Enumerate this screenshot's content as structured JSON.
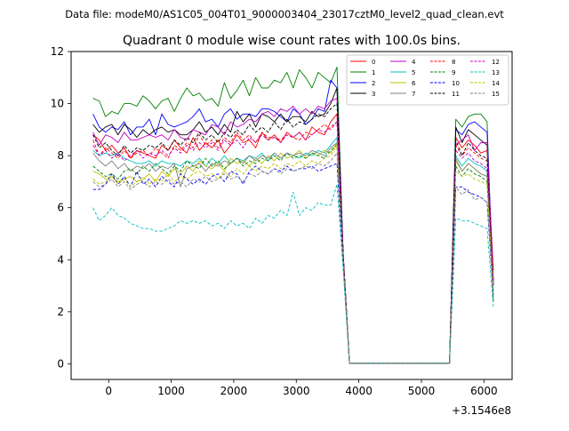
{
  "figure": {
    "suptitle": "Data file: modeM0/AS1C05_004T01_9000003404_23017cztM0_level2_quad_clean.evt"
  },
  "chart_data": {
    "type": "line",
    "title": "Quadrant 0 module wise count rates with 100.0s bins.",
    "xlabel": "",
    "ylabel": "",
    "x_offset_label": "+3.1546e8",
    "xlim": [
      -600,
      6450
    ],
    "ylim": [
      -0.6,
      12
    ],
    "xticks": [
      0,
      1000,
      2000,
      3000,
      4000,
      5000,
      6000
    ],
    "xtick_labels": [
      "0",
      "1000",
      "2000",
      "3000",
      "4000",
      "5000",
      "6000"
    ],
    "yticks": [
      0,
      2,
      4,
      6,
      8,
      10,
      12
    ],
    "ytick_labels": [
      "0",
      "2",
      "4",
      "6",
      "8",
      "10",
      "12"
    ],
    "grid": false,
    "legend_position": "top-right",
    "x": [
      -250,
      -150,
      -50,
      50,
      150,
      250,
      350,
      450,
      550,
      650,
      750,
      850,
      950,
      1050,
      1150,
      1250,
      1350,
      1450,
      1550,
      1650,
      1750,
      1850,
      1950,
      2050,
      2150,
      2250,
      2350,
      2450,
      2550,
      2650,
      2750,
      2850,
      2950,
      3050,
      3150,
      3250,
      3350,
      3450,
      3550,
      3650,
      3750,
      3850,
      3950,
      4050,
      4150,
      4250,
      4350,
      4450,
      4550,
      4650,
      4750,
      4850,
      4950,
      5050,
      5150,
      5250,
      5350,
      5450,
      5550,
      5650,
      5750,
      5850,
      5950,
      6050,
      6150
    ],
    "series": [
      {
        "name": "0",
        "color": "#ff0000",
        "dash": "solid",
        "values": [
          8.8,
          8.6,
          8.2,
          8.4,
          8.1,
          8.3,
          7.9,
          8.2,
          8.1,
          8.0,
          7.9,
          8.4,
          8.2,
          8.6,
          8.3,
          8.1,
          8.7,
          8.2,
          8.5,
          8.3,
          8.6,
          8.1,
          8.4,
          8.8,
          8.5,
          8.6,
          8.3,
          8.9,
          8.6,
          8.8,
          8.5,
          8.9,
          8.7,
          8.9,
          8.6,
          9.1,
          8.9,
          8.8,
          9.3,
          9.6,
          4.2,
          0.02,
          0.02,
          0.02,
          0.02,
          0.02,
          0.02,
          0.02,
          0.02,
          0.02,
          0.02,
          0.02,
          0.02,
          0.02,
          0.02,
          0.02,
          0.02,
          0.02,
          8.7,
          8.3,
          8.6,
          8.4,
          8.1,
          8.2,
          3.6
        ]
      },
      {
        "name": "1",
        "color": "#008000",
        "dash": "solid",
        "values": [
          10.2,
          10.1,
          9.5,
          9.7,
          9.6,
          10.0,
          10.0,
          9.9,
          10.3,
          10.1,
          9.8,
          10.1,
          10.2,
          9.7,
          10.2,
          10.6,
          10.3,
          10.4,
          10.1,
          10.2,
          9.9,
          10.8,
          10.2,
          10.5,
          10.9,
          10.3,
          11.0,
          10.6,
          10.6,
          10.9,
          10.8,
          11.2,
          10.6,
          11.3,
          11.0,
          10.6,
          11.2,
          11.0,
          10.8,
          11.4,
          4.2,
          0.02,
          0.02,
          0.02,
          0.02,
          0.02,
          0.02,
          0.02,
          0.02,
          0.02,
          0.02,
          0.02,
          0.02,
          0.02,
          0.02,
          0.02,
          0.02,
          0.02,
          9.4,
          9.1,
          9.5,
          9.6,
          9.6,
          9.3,
          2.4
        ]
      },
      {
        "name": "2",
        "color": "#0000ff",
        "dash": "solid",
        "values": [
          9.6,
          9.1,
          8.9,
          9.1,
          9.0,
          9.3,
          8.8,
          9.1,
          9.1,
          9.4,
          8.8,
          9.6,
          9.2,
          9.1,
          9.2,
          9.3,
          9.5,
          9.8,
          9.3,
          9.4,
          9.1,
          9.6,
          9.8,
          9.4,
          9.6,
          9.6,
          9.5,
          9.8,
          9.8,
          9.7,
          9.5,
          9.3,
          9.8,
          9.6,
          9.2,
          9.4,
          9.8,
          9.7,
          10.9,
          10.6,
          4.2,
          0.02,
          0.02,
          0.02,
          0.02,
          0.02,
          0.02,
          0.02,
          0.02,
          0.02,
          0.02,
          0.02,
          0.02,
          0.02,
          0.02,
          0.02,
          0.02,
          0.02,
          9.0,
          8.8,
          9.2,
          9.3,
          9.1,
          8.9,
          3.0
        ]
      },
      {
        "name": "3",
        "color": "#000000",
        "dash": "solid",
        "values": [
          9.2,
          8.9,
          9.1,
          9.2,
          8.8,
          9.2,
          9.0,
          8.7,
          9.0,
          8.8,
          9.0,
          9.1,
          8.9,
          9.0,
          8.8,
          8.8,
          9.0,
          9.3,
          8.9,
          9.1,
          8.8,
          9.2,
          8.9,
          9.7,
          9.3,
          9.6,
          9.1,
          9.6,
          9.5,
          9.3,
          9.6,
          9.3,
          9.5,
          9.5,
          9.3,
          9.7,
          9.5,
          9.6,
          10.0,
          10.6,
          4.2,
          0.02,
          0.02,
          0.02,
          0.02,
          0.02,
          0.02,
          0.02,
          0.02,
          0.02,
          0.02,
          0.02,
          0.02,
          0.02,
          0.02,
          0.02,
          0.02,
          0.02,
          9.1,
          8.5,
          9.0,
          8.8,
          8.6,
          8.4,
          3.2
        ]
      },
      {
        "name": "4",
        "color": "#bf00bf",
        "dash": "solid",
        "values": [
          8.9,
          8.4,
          8.8,
          8.7,
          8.5,
          8.9,
          8.6,
          8.6,
          8.7,
          8.8,
          8.7,
          8.8,
          8.6,
          9.0,
          8.7,
          8.6,
          9.0,
          8.9,
          8.8,
          9.2,
          9.1,
          8.8,
          9.3,
          9.1,
          9.2,
          9.4,
          9.3,
          9.6,
          9.7,
          9.5,
          9.8,
          9.7,
          9.9,
          9.6,
          9.8,
          9.6,
          9.9,
          9.8,
          10.1,
          10.2,
          4.2,
          0.02,
          0.02,
          0.02,
          0.02,
          0.02,
          0.02,
          0.02,
          0.02,
          0.02,
          0.02,
          0.02,
          0.02,
          0.02,
          0.02,
          0.02,
          0.02,
          0.02,
          8.4,
          8.6,
          8.8,
          8.2,
          8.5,
          8.5,
          3.2
        ]
      },
      {
        "name": "5",
        "color": "#00bfbf",
        "dash": "solid",
        "values": [
          8.2,
          8.0,
          8.1,
          8.0,
          8.1,
          7.9,
          7.8,
          7.7,
          7.7,
          7.8,
          7.6,
          7.8,
          7.7,
          7.7,
          7.6,
          7.8,
          7.7,
          7.9,
          7.6,
          7.9,
          7.7,
          8.0,
          7.7,
          7.9,
          7.8,
          8.0,
          7.9,
          8.1,
          7.8,
          8.1,
          7.9,
          8.1,
          8.0,
          7.9,
          8.1,
          8.0,
          8.2,
          8.1,
          8.4,
          8.7,
          4.0,
          0.02,
          0.02,
          0.02,
          0.02,
          0.02,
          0.02,
          0.02,
          0.02,
          0.02,
          0.02,
          0.02,
          0.02,
          0.02,
          0.02,
          0.02,
          0.02,
          0.02,
          8.0,
          7.6,
          7.9,
          7.7,
          7.6,
          7.4,
          3.0
        ]
      },
      {
        "name": "6",
        "color": "#bfbf00",
        "dash": "solid",
        "values": [
          7.4,
          7.3,
          7.1,
          7.2,
          7.0,
          7.1,
          7.2,
          7.0,
          7.1,
          7.3,
          7.0,
          7.4,
          7.2,
          7.5,
          7.3,
          7.6,
          7.4,
          7.8,
          7.6,
          7.5,
          7.7,
          7.4,
          7.9,
          7.7,
          7.8,
          7.6,
          7.9,
          7.7,
          8.0,
          7.8,
          8.1,
          7.9,
          8.0,
          8.2,
          7.9,
          8.1,
          8.0,
          8.2,
          8.1,
          8.5,
          4.0,
          0.02,
          0.02,
          0.02,
          0.02,
          0.02,
          0.02,
          0.02,
          0.02,
          0.02,
          0.02,
          0.02,
          0.02,
          0.02,
          0.02,
          0.02,
          0.02,
          0.02,
          7.8,
          7.4,
          7.7,
          7.5,
          7.3,
          7.2,
          3.0
        ]
      },
      {
        "name": "7",
        "color": "#808080",
        "dash": "solid",
        "values": [
          8.1,
          7.8,
          7.6,
          7.8,
          7.5,
          7.7,
          7.4,
          7.6,
          7.5,
          7.7,
          7.4,
          7.6,
          7.5,
          7.7,
          6.8,
          7.5,
          7.6,
          7.7,
          7.4,
          7.7,
          7.6,
          7.8,
          7.7,
          7.9,
          7.7,
          8.0,
          7.8,
          8.0,
          7.9,
          8.1,
          7.9,
          8.1,
          8.0,
          8.1,
          8.0,
          8.2,
          8.1,
          8.0,
          8.3,
          8.5,
          4.0,
          0.02,
          0.02,
          0.02,
          0.02,
          0.02,
          0.02,
          0.02,
          0.02,
          0.02,
          0.02,
          0.02,
          0.02,
          0.02,
          0.02,
          0.02,
          0.02,
          0.02,
          7.9,
          7.4,
          7.7,
          7.5,
          7.3,
          7.2,
          3.0
        ]
      },
      {
        "name": "8",
        "color": "#ff0000",
        "dash": "dashed",
        "values": [
          8.6,
          8.0,
          8.3,
          8.1,
          7.9,
          8.2,
          7.9,
          8.1,
          8.2,
          8.0,
          8.3,
          8.1,
          7.9,
          8.4,
          8.2,
          8.5,
          8.3,
          8.8,
          8.4,
          8.6,
          8.3,
          8.7,
          8.5,
          8.9,
          8.6,
          8.8,
          8.5,
          8.9,
          8.7,
          8.7,
          8.6,
          8.8,
          8.7,
          8.6,
          8.9,
          8.8,
          9.0,
          9.2,
          9.0,
          9.3,
          4.2,
          0.02,
          0.02,
          0.02,
          0.02,
          0.02,
          0.02,
          0.02,
          0.02,
          0.02,
          0.02,
          0.02,
          0.02,
          0.02,
          0.02,
          0.02,
          0.02,
          0.02,
          8.4,
          8.0,
          8.3,
          8.1,
          7.9,
          7.8,
          3.2
        ]
      },
      {
        "name": "9",
        "color": "#008000",
        "dash": "dashed",
        "values": [
          7.6,
          7.4,
          7.2,
          7.3,
          7.1,
          7.4,
          7.5,
          7.3,
          7.6,
          7.4,
          7.7,
          7.5,
          7.3,
          7.6,
          7.4,
          7.8,
          7.6,
          7.5,
          7.9,
          7.6,
          7.8,
          7.5,
          7.7,
          7.9,
          7.6,
          7.8,
          7.7,
          7.9,
          7.8,
          8.0,
          7.8,
          8.1,
          7.9,
          8.0,
          7.9,
          8.1,
          8.0,
          7.9,
          8.2,
          8.4,
          4.0,
          0.02,
          0.02,
          0.02,
          0.02,
          0.02,
          0.02,
          0.02,
          0.02,
          0.02,
          0.02,
          0.02,
          0.02,
          0.02,
          0.02,
          0.02,
          0.02,
          0.02,
          7.6,
          7.2,
          7.5,
          7.3,
          7.2,
          7.0,
          2.8
        ]
      },
      {
        "name": "10",
        "color": "#0000ff",
        "dash": "dashed",
        "values": [
          6.7,
          6.7,
          6.9,
          7.3,
          6.9,
          7.2,
          6.8,
          7.4,
          6.9,
          7.1,
          6.8,
          7.2,
          7.0,
          6.8,
          7.3,
          7.1,
          6.9,
          7.1,
          6.9,
          7.2,
          7.3,
          7.0,
          7.4,
          7.3,
          6.9,
          7.4,
          7.6,
          7.4,
          7.3,
          7.5,
          7.4,
          7.6,
          7.4,
          7.5,
          7.5,
          7.6,
          7.4,
          7.5,
          7.6,
          7.7,
          3.8,
          0.02,
          0.02,
          0.02,
          0.02,
          0.02,
          0.02,
          0.02,
          0.02,
          0.02,
          0.02,
          0.02,
          0.02,
          0.02,
          0.02,
          0.02,
          0.02,
          0.02,
          6.8,
          6.8,
          6.6,
          6.5,
          6.4,
          6.2,
          2.6
        ]
      },
      {
        "name": "11",
        "color": "#000000",
        "dash": "dashed",
        "values": [
          8.8,
          8.3,
          8.5,
          8.2,
          8.0,
          8.4,
          8.1,
          8.3,
          8.2,
          8.4,
          8.3,
          8.5,
          8.2,
          8.6,
          8.4,
          8.7,
          8.5,
          8.9,
          8.6,
          8.8,
          8.5,
          8.9,
          8.7,
          9.0,
          8.8,
          9.2,
          8.9,
          9.1,
          8.9,
          9.3,
          9.0,
          9.4,
          9.1,
          9.3,
          9.2,
          9.4,
          9.6,
          9.5,
          9.8,
          10.0,
          4.2,
          0.02,
          0.02,
          0.02,
          0.02,
          0.02,
          0.02,
          0.02,
          0.02,
          0.02,
          0.02,
          0.02,
          0.02,
          0.02,
          0.02,
          0.02,
          0.02,
          0.02,
          8.6,
          8.0,
          8.5,
          8.2,
          8.0,
          7.9,
          3.0
        ]
      },
      {
        "name": "12",
        "color": "#bf00bf",
        "dash": "dashed",
        "values": [
          8.4,
          8.0,
          8.2,
          7.9,
          8.1,
          7.8,
          8.0,
          8.2,
          7.9,
          8.1,
          8.0,
          8.2,
          8.0,
          8.3,
          8.1,
          8.4,
          8.2,
          8.5,
          8.3,
          8.5,
          8.2,
          8.6,
          8.4,
          8.6,
          8.3,
          8.7,
          8.5,
          8.8,
          8.6,
          8.7,
          8.5,
          8.8,
          8.7,
          8.9,
          8.6,
          8.8,
          9.0,
          8.9,
          9.1,
          9.3,
          4.2,
          0.02,
          0.02,
          0.02,
          0.02,
          0.02,
          0.02,
          0.02,
          0.02,
          0.02,
          0.02,
          0.02,
          0.02,
          0.02,
          0.02,
          0.02,
          0.02,
          0.02,
          8.2,
          7.9,
          8.1,
          7.8,
          7.7,
          7.5,
          3.0
        ]
      },
      {
        "name": "13",
        "color": "#00bfbf",
        "dash": "dashed",
        "values": [
          6.0,
          5.5,
          5.7,
          6.0,
          5.7,
          5.6,
          5.4,
          5.3,
          5.2,
          5.2,
          5.1,
          5.1,
          5.2,
          5.3,
          5.5,
          5.4,
          5.5,
          5.4,
          5.5,
          5.3,
          5.4,
          5.2,
          5.5,
          5.3,
          5.4,
          5.2,
          5.6,
          5.4,
          5.7,
          5.6,
          5.9,
          5.7,
          6.6,
          5.7,
          6.0,
          5.9,
          6.2,
          6.1,
          6.1,
          6.9,
          3.6,
          0.02,
          0.02,
          0.02,
          0.02,
          0.02,
          0.02,
          0.02,
          0.02,
          0.02,
          0.02,
          0.02,
          0.02,
          0.02,
          0.02,
          0.02,
          0.02,
          0.02,
          5.6,
          5.5,
          5.5,
          5.4,
          5.3,
          5.2,
          2.2
        ]
      },
      {
        "name": "14",
        "color": "#bfbf00",
        "dash": "dashed",
        "values": [
          7.1,
          6.9,
          7.0,
          7.2,
          6.9,
          7.1,
          6.8,
          7.0,
          7.2,
          6.9,
          7.1,
          7.0,
          7.3,
          7.0,
          7.2,
          7.1,
          7.3,
          7.4,
          7.2,
          7.3,
          7.1,
          7.4,
          7.2,
          7.5,
          7.3,
          7.6,
          7.4,
          7.6,
          7.5,
          7.7,
          7.5,
          7.7,
          7.6,
          7.8,
          7.6,
          7.8,
          7.7,
          7.9,
          8.0,
          8.4,
          4.0,
          0.02,
          0.02,
          0.02,
          0.02,
          0.02,
          0.02,
          0.02,
          0.02,
          0.02,
          0.02,
          0.02,
          0.02,
          0.02,
          0.02,
          0.02,
          0.02,
          0.02,
          7.4,
          7.2,
          7.3,
          7.1,
          7.0,
          6.9,
          2.8
        ]
      },
      {
        "name": "15",
        "color": "#808080",
        "dash": "dashed",
        "values": [
          7.0,
          6.8,
          6.9,
          7.1,
          6.8,
          7.0,
          6.7,
          6.9,
          7.0,
          6.8,
          7.0,
          6.9,
          7.1,
          6.9,
          7.0,
          6.8,
          7.1,
          7.0,
          7.2,
          7.0,
          7.1,
          7.3,
          7.1,
          7.2,
          7.0,
          7.3,
          7.2,
          7.4,
          7.3,
          7.5,
          7.3,
          7.5,
          7.4,
          7.5,
          7.6,
          7.5,
          7.7,
          7.6,
          7.8,
          8.1,
          3.9,
          0.02,
          0.02,
          0.02,
          0.02,
          0.02,
          0.02,
          0.02,
          0.02,
          0.02,
          0.02,
          0.02,
          0.02,
          0.02,
          0.02,
          0.02,
          0.02,
          0.02,
          6.8,
          6.5,
          6.7,
          6.3,
          6.4,
          6.2,
          2.6
        ]
      }
    ]
  }
}
